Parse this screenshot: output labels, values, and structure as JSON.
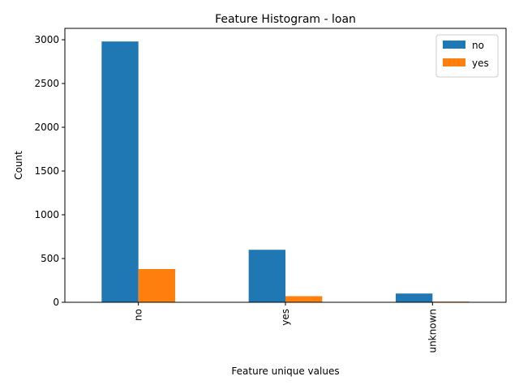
{
  "chart_data": {
    "type": "bar",
    "title": "Feature Histogram - loan",
    "xlabel": "Feature unique values",
    "ylabel": "Count",
    "categories": [
      "no",
      "yes",
      "unknown"
    ],
    "series": [
      {
        "name": "no",
        "values": [
          2980,
          600,
          100
        ],
        "color": "#1f77b4"
      },
      {
        "name": "yes",
        "values": [
          380,
          70,
          8
        ],
        "color": "#ff7f0e"
      }
    ],
    "ylim": [
      0,
      3130
    ],
    "yticks": [
      0,
      500,
      1000,
      1500,
      2000,
      2500,
      3000
    ],
    "legend_position": "top-right",
    "grid": false
  }
}
